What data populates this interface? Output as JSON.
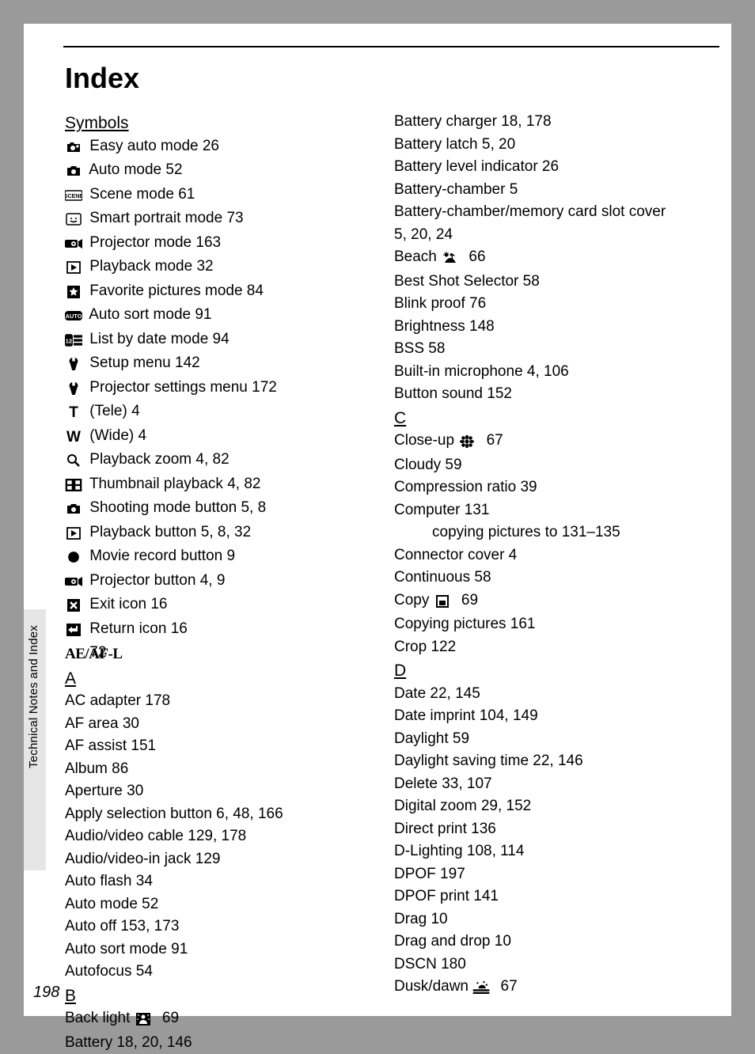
{
  "title": "Index",
  "sidebar": "Technical Notes and Index",
  "page_number": "198",
  "col1": [
    {
      "type": "letter",
      "text": "Symbols"
    },
    {
      "type": "sym",
      "icon": "easy-auto",
      "text": "Easy auto mode 26"
    },
    {
      "type": "sym",
      "icon": "camera",
      "text": "Auto mode 52"
    },
    {
      "type": "sym",
      "icon": "scene",
      "text": "Scene mode 61"
    },
    {
      "type": "sym",
      "icon": "smart-portrait",
      "text": "Smart portrait mode 73"
    },
    {
      "type": "sym",
      "icon": "projector",
      "text": "Projector mode 163"
    },
    {
      "type": "sym",
      "icon": "playback",
      "text": "Playback mode 32"
    },
    {
      "type": "sym",
      "icon": "star",
      "text": "Favorite pictures mode 84"
    },
    {
      "type": "sym",
      "icon": "auto-sort",
      "text": "Auto sort mode 91"
    },
    {
      "type": "sym",
      "icon": "list-date",
      "text": "List by date mode 94"
    },
    {
      "type": "sym",
      "icon": "wrench",
      "text": "Setup menu 142"
    },
    {
      "type": "sym",
      "icon": "wrench",
      "text": "Projector settings menu 172"
    },
    {
      "type": "sym",
      "icon": "T",
      "text": "(Tele) 4"
    },
    {
      "type": "sym",
      "icon": "W",
      "text": "(Wide) 4"
    },
    {
      "type": "sym",
      "icon": "magnify",
      "text": "Playback zoom 4, 82"
    },
    {
      "type": "sym",
      "icon": "thumbnail",
      "text": "Thumbnail playback 4, 82"
    },
    {
      "type": "sym",
      "icon": "camera",
      "text": "Shooting mode button 5, 8"
    },
    {
      "type": "sym",
      "icon": "playback",
      "text": "Playback button 5, 8, 32"
    },
    {
      "type": "sym",
      "icon": "dot",
      "text": "Movie record button 9"
    },
    {
      "type": "sym",
      "icon": "projector",
      "text": "Projector button 4, 9"
    },
    {
      "type": "sym",
      "icon": "exit",
      "text": "Exit icon 16"
    },
    {
      "type": "sym",
      "icon": "return",
      "text": "Return icon 16"
    },
    {
      "type": "sym",
      "icon": "aeafl",
      "text": "72"
    },
    {
      "type": "letter",
      "text": "A"
    },
    {
      "type": "plain",
      "text": "AC adapter 178"
    },
    {
      "type": "plain",
      "text": "AF area 30"
    },
    {
      "type": "plain",
      "text": "AF assist 151"
    },
    {
      "type": "plain",
      "text": "Album 86"
    },
    {
      "type": "plain",
      "text": "Aperture 30"
    },
    {
      "type": "plain",
      "text": "Apply selection button 6, 48, 166"
    },
    {
      "type": "plain",
      "text": "Audio/video cable 129, 178"
    },
    {
      "type": "plain",
      "text": "Audio/video-in jack 129"
    },
    {
      "type": "plain",
      "text": "Auto flash 34"
    },
    {
      "type": "plain",
      "text": "Auto mode 52"
    },
    {
      "type": "plain",
      "text": "Auto off 153, 173"
    },
    {
      "type": "plain",
      "text": "Auto sort mode 91"
    },
    {
      "type": "plain",
      "text": "Autofocus 54"
    },
    {
      "type": "letter",
      "text": "B"
    },
    {
      "type": "inline",
      "pre": "Back light ",
      "icon": "backlight",
      "post": " 69"
    },
    {
      "type": "plain",
      "text": "Battery 18, 20, 146"
    }
  ],
  "col2": [
    {
      "type": "plain",
      "text": "Battery charger 18, 178"
    },
    {
      "type": "plain",
      "text": "Battery latch 5, 20"
    },
    {
      "type": "plain",
      "text": "Battery level indicator 26"
    },
    {
      "type": "plain",
      "text": "Battery-chamber 5"
    },
    {
      "type": "plain",
      "text": "Battery-chamber/memory card slot cover"
    },
    {
      "type": "plain",
      "text": "5, 20, 24"
    },
    {
      "type": "inline",
      "pre": "Beach ",
      "icon": "beach",
      "post": " 66"
    },
    {
      "type": "plain",
      "text": "Best Shot Selector 58"
    },
    {
      "type": "plain",
      "text": "Blink proof 76"
    },
    {
      "type": "plain",
      "text": "Brightness 148"
    },
    {
      "type": "plain",
      "text": "BSS 58"
    },
    {
      "type": "plain",
      "text": "Built-in microphone 4, 106"
    },
    {
      "type": "plain",
      "text": "Button sound 152"
    },
    {
      "type": "letter",
      "text": "C"
    },
    {
      "type": "inline",
      "pre": "Close-up ",
      "icon": "close-up",
      "post": " 67"
    },
    {
      "type": "plain",
      "text": "Cloudy 59"
    },
    {
      "type": "plain",
      "text": "Compression ratio 39"
    },
    {
      "type": "plain",
      "text": "Computer 131"
    },
    {
      "type": "indent",
      "text": "copying pictures to 131–135"
    },
    {
      "type": "plain",
      "text": "Connector cover 4"
    },
    {
      "type": "plain",
      "text": "Continuous 58"
    },
    {
      "type": "inline",
      "pre": "Copy ",
      "icon": "copy",
      "post": " 69"
    },
    {
      "type": "plain",
      "text": "Copying pictures 161"
    },
    {
      "type": "plain",
      "text": "Crop 122"
    },
    {
      "type": "letter",
      "text": "D"
    },
    {
      "type": "plain",
      "text": "Date 22, 145"
    },
    {
      "type": "plain",
      "text": "Date imprint 104, 149"
    },
    {
      "type": "plain",
      "text": "Daylight 59"
    },
    {
      "type": "plain",
      "text": "Daylight saving time 22, 146"
    },
    {
      "type": "plain",
      "text": "Delete 33, 107"
    },
    {
      "type": "plain",
      "text": "Digital zoom 29, 152"
    },
    {
      "type": "plain",
      "text": "Direct print 136"
    },
    {
      "type": "plain",
      "text": "D-Lighting 108, 114"
    },
    {
      "type": "plain",
      "text": "DPOF 197"
    },
    {
      "type": "plain",
      "text": "DPOF print 141"
    },
    {
      "type": "plain",
      "text": "Drag 10"
    },
    {
      "type": "plain",
      "text": "Drag and drop 10"
    },
    {
      "type": "plain",
      "text": "DSCN 180"
    },
    {
      "type": "inline",
      "pre": "Dusk/dawn ",
      "icon": "dusk",
      "post": " 67"
    }
  ]
}
